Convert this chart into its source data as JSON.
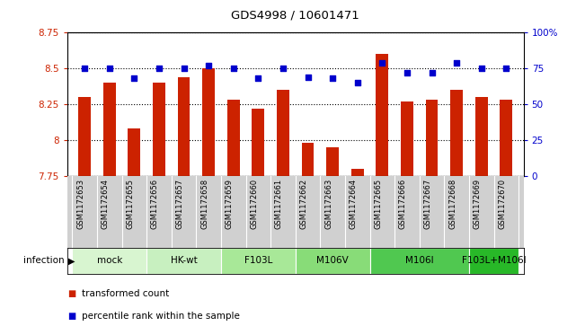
{
  "title": "GDS4998 / 10601471",
  "samples": [
    "GSM1172653",
    "GSM1172654",
    "GSM1172655",
    "GSM1172656",
    "GSM1172657",
    "GSM1172658",
    "GSM1172659",
    "GSM1172660",
    "GSM1172661",
    "GSM1172662",
    "GSM1172663",
    "GSM1172664",
    "GSM1172665",
    "GSM1172666",
    "GSM1172667",
    "GSM1172668",
    "GSM1172669",
    "GSM1172670"
  ],
  "bar_values": [
    8.3,
    8.4,
    8.08,
    8.4,
    8.44,
    8.5,
    8.28,
    8.22,
    8.35,
    7.98,
    7.95,
    7.8,
    8.6,
    8.27,
    8.28,
    8.35,
    8.3,
    8.28
  ],
  "percentile_values": [
    75,
    75,
    68,
    75,
    75,
    77,
    75,
    68,
    75,
    69,
    68,
    65,
    79,
    72,
    72,
    79,
    75,
    75
  ],
  "ylim_left": [
    7.75,
    8.75
  ],
  "ylim_right": [
    0,
    100
  ],
  "yticks_left": [
    7.75,
    8.0,
    8.25,
    8.5,
    8.75
  ],
  "yticks_right": [
    0,
    25,
    50,
    75,
    100
  ],
  "ytick_labels_left": [
    "7.75",
    "8",
    "8.25",
    "8.5",
    "8.75"
  ],
  "ytick_labels_right": [
    "0",
    "25",
    "50",
    "75",
    "100%"
  ],
  "groups": [
    {
      "label": "mock",
      "indices": [
        0,
        1,
        2
      ],
      "color": "#d8f5d0"
    },
    {
      "label": "HK-wt",
      "indices": [
        3,
        4,
        5
      ],
      "color": "#c8f0c0"
    },
    {
      "label": "F103L",
      "indices": [
        6,
        7,
        8
      ],
      "color": "#a8e898"
    },
    {
      "label": "M106V",
      "indices": [
        9,
        10,
        11
      ],
      "color": "#88dc78"
    },
    {
      "label": "M106I",
      "indices": [
        12,
        13,
        14,
        15
      ],
      "color": "#50c850"
    },
    {
      "label": "F103L+M106I",
      "indices": [
        16,
        17
      ],
      "color": "#28b828"
    }
  ],
  "bar_color": "#cc2200",
  "dot_color": "#0000cc",
  "xtick_bg": "#d0d0d0",
  "infection_label": "infection",
  "legend_bar": "transformed count",
  "legend_dot": "percentile rank within the sample"
}
